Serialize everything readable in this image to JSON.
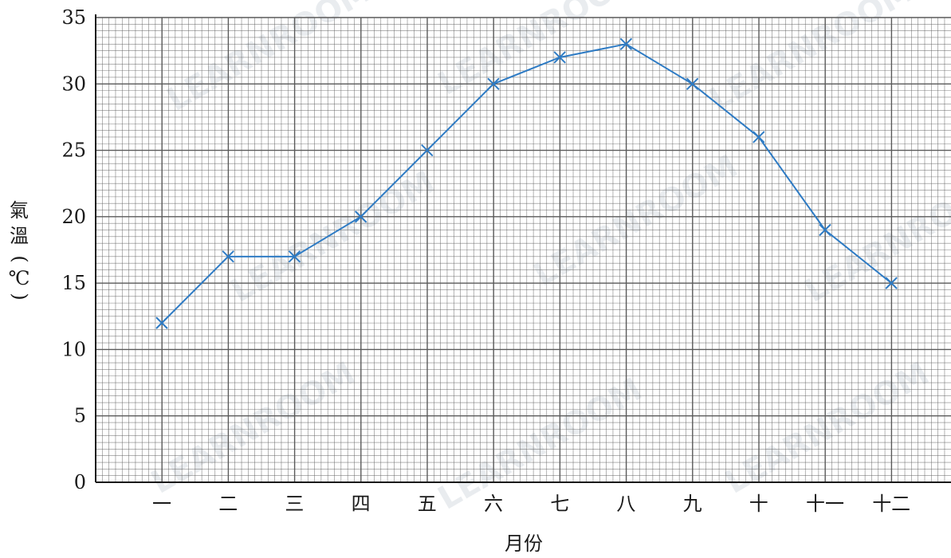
{
  "chart_data": {
    "type": "line",
    "title": "",
    "xlabel": "月份",
    "ylabel_chars": [
      "氣",
      "溫",
      "(",
      "℃",
      ")"
    ],
    "categories": [
      "一",
      "二",
      "三",
      "四",
      "五",
      "六",
      "七",
      "八",
      "九",
      "十",
      "十一",
      "十二"
    ],
    "series": [
      {
        "values": [
          12,
          17,
          17,
          20,
          25,
          30,
          32,
          33,
          30,
          26,
          19,
          15
        ]
      }
    ],
    "ylim": [
      0,
      35
    ],
    "yticks": [
      0,
      5,
      10,
      15,
      20,
      25,
      30,
      35
    ],
    "grid": true,
    "marker": "x",
    "line_color": "#2e7bc4",
    "grid_color": "#5a5a5a"
  },
  "watermark": "LEARNROOM"
}
